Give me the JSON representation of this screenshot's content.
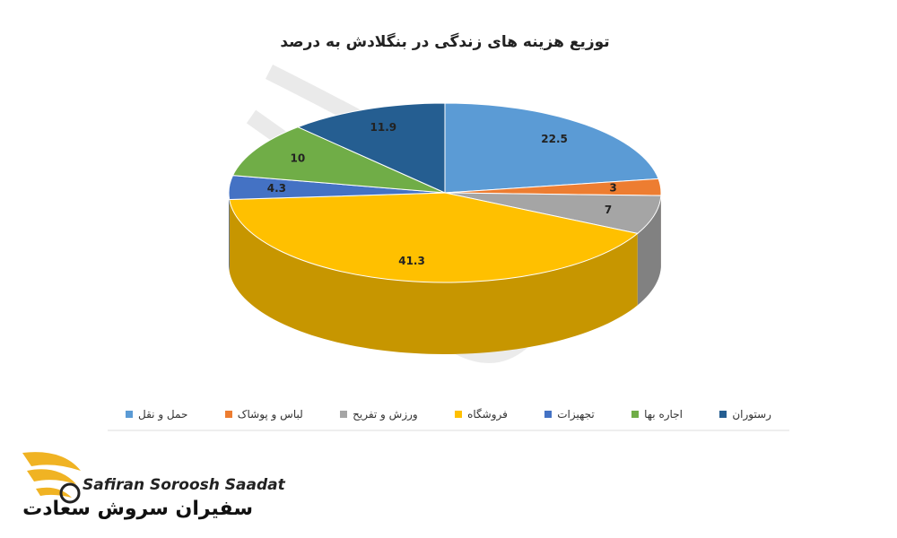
{
  "chart_data": {
    "type": "pie",
    "title": "توزیع هزینه های زندگی در بنگلادش به درصد",
    "categories": [
      "حمل و نقل",
      "لباس و پوشاک",
      "ورزش و تفریح",
      "فروشگاه",
      "تجهیزات",
      "اجاره بها",
      "رستوران"
    ],
    "values": [
      22.5,
      3,
      7,
      41.3,
      4.3,
      10,
      11.9
    ],
    "colors": [
      "#5b9bd5",
      "#ed7d31",
      "#a5a5a5",
      "#ffc000",
      "#4472c4",
      "#70ad47",
      "#255e91"
    ],
    "legend_position": "bottom"
  },
  "logo": {
    "latin": "Safiran Soroosh Saadat",
    "persian": "سفیران سروش سعادت"
  }
}
